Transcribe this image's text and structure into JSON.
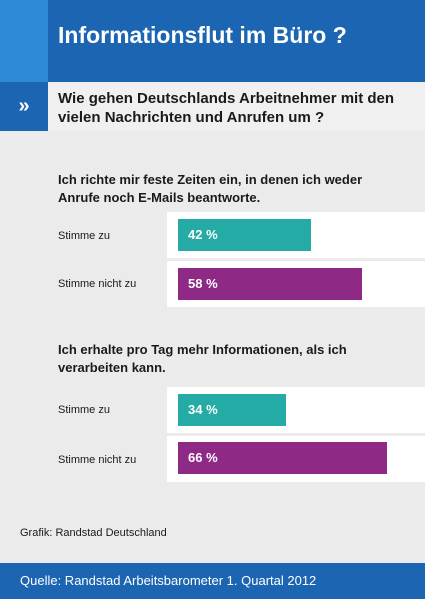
{
  "header": {
    "title": "Informationsflut im Büro ?"
  },
  "question": {
    "marker": "»",
    "text": "Wie gehen Deutschlands Arbeitnehmer mit den vielen Nachrichten und Anrufen um ?"
  },
  "colors": {
    "header": "#1b65b2",
    "agree": "#25aba5",
    "disagree": "#8e2a86",
    "panel": "#ebebeb"
  },
  "chart_data": [
    {
      "type": "bar",
      "title": "Ich richte mir feste Zeiten ein, in denen ich weder Anrufe noch E-Mails beantworte.",
      "categories": [
        "Stimme zu",
        "Stimme nicht zu"
      ],
      "values": [
        42,
        58
      ],
      "value_labels": [
        "42 %",
        "58 %"
      ],
      "unit": "%",
      "orientation": "horizontal",
      "xlim": [
        0,
        100
      ]
    },
    {
      "type": "bar",
      "title": "Ich erhalte pro Tag mehr Informationen, als ich verarbeiten kann.",
      "categories": [
        "Stimme zu",
        "Stimme nicht zu"
      ],
      "values": [
        34,
        66
      ],
      "value_labels": [
        "34 %",
        "66 %"
      ],
      "unit": "%",
      "orientation": "horizontal",
      "xlim": [
        0,
        100
      ]
    }
  ],
  "credit": "Grafik: Randstad Deutschland",
  "footer": {
    "source": "Quelle: Randstad Arbeitsbarometer 1. Quartal 2012"
  }
}
